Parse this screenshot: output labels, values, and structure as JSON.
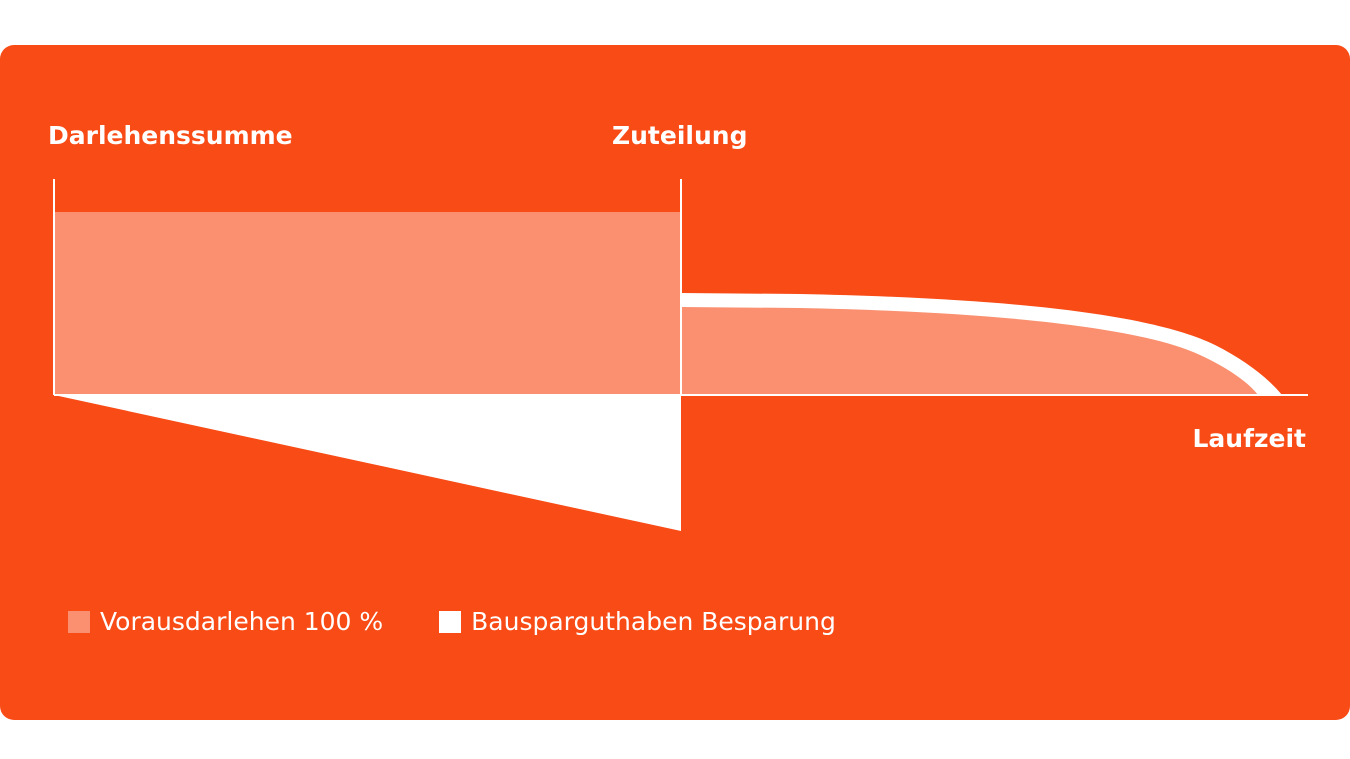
{
  "labels": {
    "darlehenssumme": "Darlehenssumme",
    "zuteilung": "Zuteilung",
    "laufzeit": "Laufzeit"
  },
  "legend": [
    {
      "label": "Vorausdarlehen 100 %",
      "color": "#fa9070"
    },
    {
      "label": "Bausparguthaben Besparung",
      "color": "#ffffff"
    }
  ],
  "colors": {
    "background": "#f84b16",
    "loan_fill": "#fa9070",
    "savings_fill": "#ffffff",
    "axis": "#ffffff"
  }
}
